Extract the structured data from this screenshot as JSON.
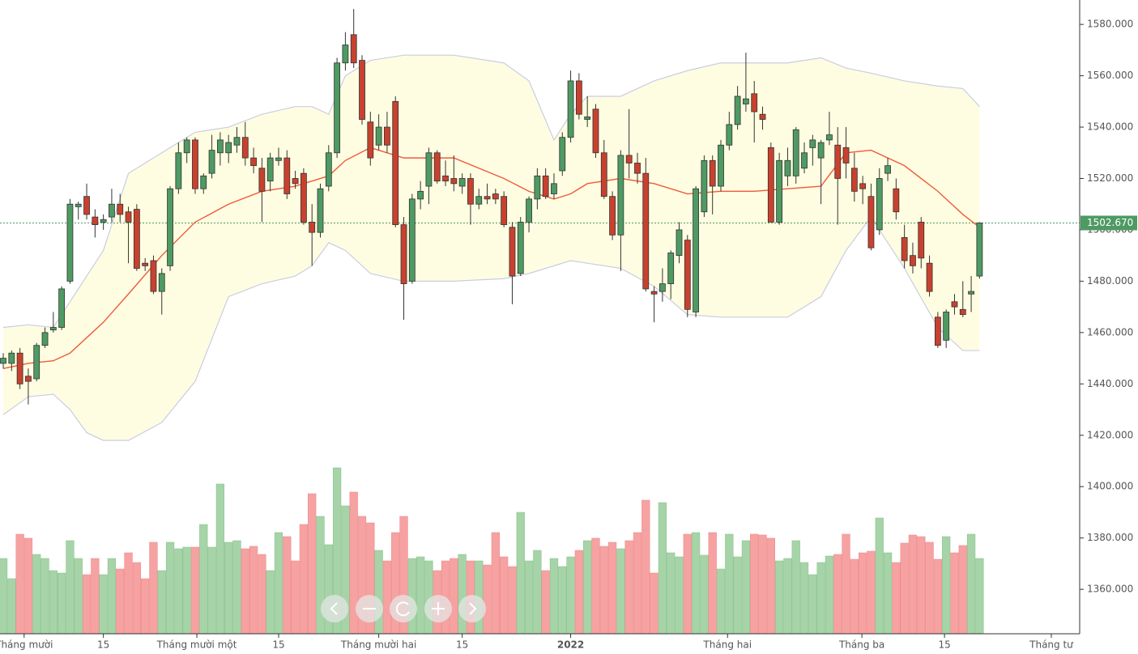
{
  "chart_data": {
    "type": "candlestick",
    "up_color": "#4e9a63",
    "down_color": "#c8412f",
    "volume_up_color": "#a6d4a8",
    "volume_down_color": "#f6a2a2",
    "band_fill": "#fffde1",
    "band_line_color": "#c9cde2",
    "middle_color": "#f05a3c",
    "ylim": [
      1342.7,
      1589.5
    ],
    "yticks": [
      {
        "value": 1360,
        "label": "1360.000"
      },
      {
        "value": 1380,
        "label": "1380.000"
      },
      {
        "value": 1400,
        "label": "1400.000"
      },
      {
        "value": 1420,
        "label": "1420.000"
      },
      {
        "value": 1440,
        "label": "1440.000"
      },
      {
        "value": 1460,
        "label": "1460.000"
      },
      {
        "value": 1480,
        "label": "1480.000"
      },
      {
        "value": 1500,
        "label": "1500.000"
      },
      {
        "value": 1520,
        "label": "1520.000"
      },
      {
        "value": 1540,
        "label": "1540.000"
      },
      {
        "value": 1560,
        "label": "1560.000"
      },
      {
        "value": 1580,
        "label": "1580.000"
      }
    ],
    "xlim": [
      -0.39,
      129.0
    ],
    "xticks": [
      {
        "value": 2.5,
        "label": "Tháng mười"
      },
      {
        "value": 12,
        "label": "15"
      },
      {
        "value": 23.2,
        "label": "Tháng mười một"
      },
      {
        "value": 33,
        "label": "15"
      },
      {
        "value": 45,
        "label": "Tháng mười hai"
      },
      {
        "value": 55,
        "label": "15"
      },
      {
        "value": 68,
        "label": "2022"
      },
      {
        "value": 86.8,
        "label": "Tháng hai"
      },
      {
        "value": 102.9,
        "label": "Tháng ba"
      },
      {
        "value": 112.8,
        "label": "15"
      },
      {
        "value": 125.6,
        "label": "Tháng tư"
      }
    ],
    "last_price": {
      "value": 1502.67,
      "label": "1502.670"
    },
    "candles": [
      [
        1448,
        1452,
        1446,
        1450
      ],
      [
        1448,
        1453,
        1445,
        1452
      ],
      [
        1452,
        1454,
        1438,
        1440
      ],
      [
        1443,
        1446,
        1432,
        1441
      ],
      [
        1442,
        1456,
        1441,
        1455
      ],
      [
        1455,
        1462,
        1454,
        1460
      ],
      [
        1461,
        1468,
        1460,
        1462
      ],
      [
        1462,
        1478,
        1461,
        1477
      ],
      [
        1480,
        1512,
        1479,
        1510
      ],
      [
        1509,
        1511,
        1504,
        1510
      ],
      [
        1513,
        1518,
        1504,
        1506
      ],
      [
        1505,
        1508,
        1497,
        1502
      ],
      [
        1503,
        1506,
        1500,
        1504
      ],
      [
        1505,
        1516,
        1503,
        1510
      ],
      [
        1510,
        1514,
        1503,
        1506
      ],
      [
        1507,
        1509,
        1487,
        1503
      ],
      [
        1508,
        1510,
        1484,
        1485
      ],
      [
        1487,
        1489,
        1484,
        1486
      ],
      [
        1488,
        1490,
        1475,
        1476
      ],
      [
        1476,
        1485,
        1467,
        1483
      ],
      [
        1486,
        1517,
        1484,
        1516
      ],
      [
        1516,
        1534,
        1514,
        1530
      ],
      [
        1530,
        1536,
        1526,
        1535
      ],
      [
        1535,
        1536,
        1514,
        1516
      ],
      [
        1516,
        1522,
        1514,
        1521
      ],
      [
        1522,
        1537,
        1520,
        1531
      ],
      [
        1530,
        1538,
        1525,
        1535
      ],
      [
        1530,
        1537,
        1526,
        1534
      ],
      [
        1533,
        1540,
        1530,
        1536
      ],
      [
        1536,
        1542,
        1525,
        1528
      ],
      [
        1528,
        1532,
        1522,
        1525
      ],
      [
        1524,
        1528,
        1503,
        1515
      ],
      [
        1519,
        1530,
        1515,
        1528
      ],
      [
        1527,
        1532,
        1525,
        1528
      ],
      [
        1528,
        1531,
        1512,
        1514
      ],
      [
        1520,
        1523,
        1516,
        1518
      ],
      [
        1522,
        1524,
        1502,
        1503
      ],
      [
        1503,
        1510,
        1486,
        1499
      ],
      [
        1499,
        1518,
        1497,
        1516
      ],
      [
        1517,
        1533,
        1515,
        1530
      ],
      [
        1530,
        1567,
        1528,
        1565
      ],
      [
        1565,
        1577,
        1562,
        1572
      ],
      [
        1576,
        1586,
        1563,
        1565
      ],
      [
        1566,
        1568,
        1541,
        1543
      ],
      [
        1542,
        1546,
        1525,
        1528
      ],
      [
        1533,
        1545,
        1531,
        1540
      ],
      [
        1540,
        1546,
        1530,
        1533
      ],
      [
        1550,
        1552,
        1501,
        1502
      ],
      [
        1502,
        1505,
        1465,
        1479
      ],
      [
        1480,
        1514,
        1479,
        1512
      ],
      [
        1512,
        1519,
        1508,
        1515
      ],
      [
        1517,
        1532,
        1510,
        1530
      ],
      [
        1530,
        1531,
        1518,
        1519
      ],
      [
        1521,
        1527,
        1517,
        1519
      ],
      [
        1520,
        1529,
        1515,
        1518
      ],
      [
        1517,
        1522,
        1514,
        1520
      ],
      [
        1520,
        1522,
        1502,
        1510
      ],
      [
        1510,
        1516,
        1508,
        1513
      ],
      [
        1513,
        1518,
        1510,
        1512
      ],
      [
        1514,
        1516,
        1510,
        1512
      ],
      [
        1513,
        1515,
        1501,
        1502
      ],
      [
        1501,
        1503,
        1471,
        1482
      ],
      [
        1483,
        1505,
        1482,
        1503
      ],
      [
        1503,
        1513,
        1499,
        1512
      ],
      [
        1512,
        1524,
        1508,
        1521
      ],
      [
        1521,
        1524,
        1512,
        1513
      ],
      [
        1514,
        1522,
        1512,
        1518
      ],
      [
        1523,
        1538,
        1521,
        1536
      ],
      [
        1536,
        1562,
        1534,
        1558
      ],
      [
        1558,
        1561,
        1543,
        1545
      ],
      [
        1543,
        1552,
        1540,
        1544
      ],
      [
        1547,
        1549,
        1528,
        1530
      ],
      [
        1530,
        1535,
        1512,
        1513
      ],
      [
        1513,
        1515,
        1496,
        1498
      ],
      [
        1498,
        1531,
        1484,
        1529
      ],
      [
        1529,
        1547,
        1520,
        1526
      ],
      [
        1526,
        1530,
        1518,
        1522
      ],
      [
        1522,
        1528,
        1476,
        1477
      ],
      [
        1476,
        1478,
        1464,
        1475
      ],
      [
        1476,
        1485,
        1472,
        1479
      ],
      [
        1479,
        1492,
        1473,
        1491
      ],
      [
        1490,
        1503,
        1487,
        1500
      ],
      [
        1496,
        1498,
        1466,
        1469
      ],
      [
        1468,
        1517,
        1466,
        1516
      ],
      [
        1507,
        1529,
        1505,
        1527
      ],
      [
        1527,
        1529,
        1506,
        1517
      ],
      [
        1517,
        1535,
        1515,
        1533
      ],
      [
        1533,
        1546,
        1531,
        1541
      ],
      [
        1541,
        1556,
        1539,
        1552
      ],
      [
        1549,
        1569,
        1546,
        1551
      ],
      [
        1553,
        1558,
        1534,
        1546
      ],
      [
        1545,
        1548,
        1539,
        1543
      ],
      [
        1532,
        1534,
        1503,
        1503
      ],
      [
        1503,
        1530,
        1502,
        1527
      ],
      [
        1521,
        1532,
        1517,
        1527
      ],
      [
        1521,
        1540,
        1518,
        1539
      ],
      [
        1524,
        1534,
        1522,
        1530
      ],
      [
        1532,
        1537,
        1525,
        1535
      ],
      [
        1528,
        1535,
        1510,
        1534
      ],
      [
        1535,
        1546,
        1533,
        1537
      ],
      [
        1533,
        1540,
        1502,
        1520
      ],
      [
        1532,
        1540,
        1520,
        1526
      ],
      [
        1524,
        1530,
        1511,
        1515
      ],
      [
        1518,
        1521,
        1510,
        1516
      ],
      [
        1513,
        1518,
        1492,
        1493
      ],
      [
        1500,
        1524,
        1498,
        1520
      ],
      [
        1522,
        1528,
        1519,
        1525
      ],
      [
        1516,
        1520,
        1504,
        1507
      ],
      [
        1497,
        1502,
        1485,
        1488
      ],
      [
        1490,
        1495,
        1483,
        1486
      ],
      [
        1503,
        1505,
        1485,
        1489
      ],
      [
        1487,
        1490,
        1474,
        1476
      ],
      [
        1466,
        1468,
        1454,
        1455
      ],
      [
        1457,
        1469,
        1454,
        1468
      ],
      [
        1472,
        1475,
        1467,
        1470
      ],
      [
        1469,
        1480,
        1466,
        1467
      ],
      [
        1475,
        1482,
        1468,
        1476
      ],
      [
        1482,
        1503,
        1481,
        1502.67
      ]
    ],
    "volume": [
      93,
      68,
      123,
      118,
      98,
      93,
      78,
      75,
      115,
      93,
      73,
      93,
      73,
      93,
      80,
      100,
      88,
      68,
      113,
      78,
      113,
      105,
      107,
      107,
      135,
      107,
      185,
      113,
      115,
      105,
      108,
      98,
      78,
      125,
      120,
      90,
      135,
      173,
      145,
      110,
      205,
      158,
      175,
      145,
      137,
      103,
      90,
      125,
      145,
      93,
      95,
      90,
      78,
      90,
      93,
      98,
      90,
      90,
      85,
      125,
      95,
      83,
      150,
      90,
      103,
      78,
      93,
      83,
      95,
      103,
      115,
      118,
      108,
      113,
      105,
      115,
      125,
      165,
      75,
      162,
      100,
      95,
      123,
      125,
      97,
      125,
      80,
      123,
      95,
      115,
      123,
      122,
      118,
      90,
      93,
      115,
      88,
      73,
      88,
      96,
      98,
      123,
      92,
      100,
      102,
      143,
      100,
      88,
      112,
      122,
      120,
      113,
      92,
      120,
      100,
      109,
      123,
      93
    ],
    "bands": {
      "x": [
        0,
        3,
        6,
        8,
        10,
        12,
        15,
        19,
        23,
        27,
        31,
        35,
        37,
        39,
        41,
        44,
        48,
        54,
        60,
        63,
        66,
        68,
        70,
        74,
        78,
        82,
        86,
        90,
        94,
        98,
        101,
        104,
        108,
        112,
        115,
        117
      ],
      "upper": [
        1462,
        1463,
        1462,
        1472,
        1482,
        1492,
        1522,
        1530,
        1538,
        1540,
        1545,
        1548,
        1548,
        1545,
        1560,
        1566,
        1568,
        1568,
        1565,
        1558,
        1535,
        1545,
        1552,
        1552,
        1558,
        1562,
        1565,
        1565,
        1565,
        1567,
        1563,
        1561,
        1558,
        1556,
        1555,
        1548
      ],
      "middle": [
        1446,
        1448,
        1449,
        1452,
        1458,
        1464,
        1475,
        1490,
        1503,
        1510,
        1515,
        1517,
        1519,
        1521,
        1527,
        1532,
        1528,
        1528,
        1520,
        1515,
        1512,
        1514,
        1518,
        1520,
        1518,
        1514,
        1515,
        1515,
        1516,
        1517,
        1530,
        1531,
        1525,
        1515,
        1506,
        1501
      ],
      "lower": [
        1428,
        1435,
        1436,
        1430,
        1421,
        1418,
        1418,
        1425,
        1441,
        1474,
        1479,
        1482,
        1486,
        1495,
        1492,
        1483,
        1480,
        1480,
        1481,
        1483,
        1486,
        1488,
        1487,
        1485,
        1478,
        1467,
        1466,
        1466,
        1466,
        1474,
        1492,
        1505,
        1485,
        1462,
        1453,
        1453
      ]
    }
  }
}
